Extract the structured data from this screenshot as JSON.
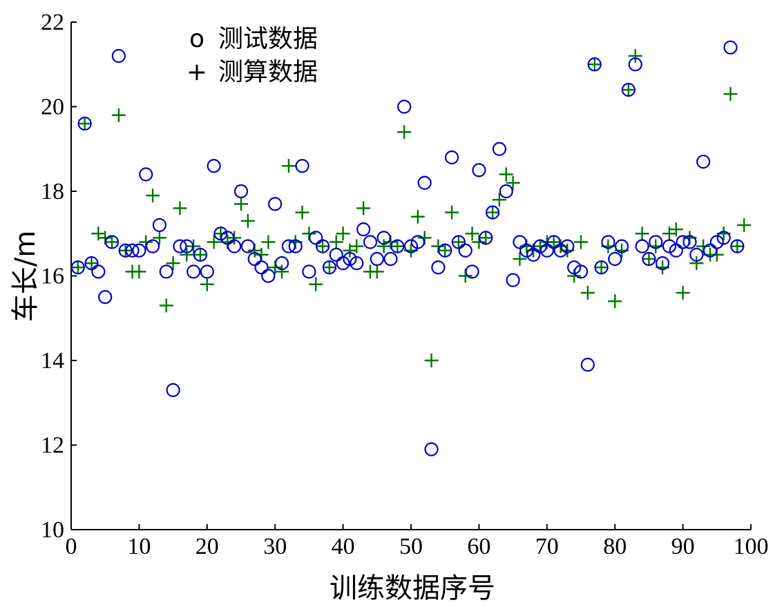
{
  "chart_data": {
    "type": "scatter",
    "xlabel": "训练数据序号",
    "ylabel": "车长/m",
    "xlim": [
      0,
      100
    ],
    "ylim": [
      10,
      22
    ],
    "xticks": [
      0,
      10,
      20,
      30,
      40,
      50,
      60,
      70,
      80,
      90,
      100
    ],
    "yticks": [
      10,
      12,
      14,
      16,
      18,
      20,
      22
    ],
    "grid": false,
    "legend_position": "top-left",
    "series": [
      {
        "name": "测试数据",
        "legend_marker": "o",
        "marker": "circle",
        "color": "#0000cc",
        "points": [
          [
            1,
            16.2
          ],
          [
            2,
            19.6
          ],
          [
            3,
            16.3
          ],
          [
            4,
            16.1
          ],
          [
            5,
            15.5
          ],
          [
            6,
            16.8
          ],
          [
            7,
            21.2
          ],
          [
            8,
            16.6
          ],
          [
            9,
            16.6
          ],
          [
            10,
            16.6
          ],
          [
            11,
            18.4
          ],
          [
            12,
            16.7
          ],
          [
            13,
            17.2
          ],
          [
            14,
            16.1
          ],
          [
            15,
            13.3
          ],
          [
            16,
            16.7
          ],
          [
            17,
            16.7
          ],
          [
            18,
            16.1
          ],
          [
            19,
            16.5
          ],
          [
            20,
            16.1
          ],
          [
            21,
            18.6
          ],
          [
            22,
            17.0
          ],
          [
            23,
            16.9
          ],
          [
            24,
            16.7
          ],
          [
            25,
            18.0
          ],
          [
            26,
            16.7
          ],
          [
            27,
            16.4
          ],
          [
            28,
            16.2
          ],
          [
            29,
            16.0
          ],
          [
            30,
            17.7
          ],
          [
            31,
            16.3
          ],
          [
            32,
            16.7
          ],
          [
            33,
            16.7
          ],
          [
            34,
            18.6
          ],
          [
            35,
            16.1
          ],
          [
            36,
            16.9
          ],
          [
            37,
            16.7
          ],
          [
            38,
            16.2
          ],
          [
            39,
            16.5
          ],
          [
            40,
            16.3
          ],
          [
            41,
            16.4
          ],
          [
            42,
            16.3
          ],
          [
            43,
            17.1
          ],
          [
            44,
            16.8
          ],
          [
            45,
            16.4
          ],
          [
            46,
            16.9
          ],
          [
            47,
            16.4
          ],
          [
            48,
            16.7
          ],
          [
            49,
            20.0
          ],
          [
            50,
            16.7
          ],
          [
            51,
            16.8
          ],
          [
            52,
            18.2
          ],
          [
            53,
            11.9
          ],
          [
            54,
            16.2
          ],
          [
            55,
            16.6
          ],
          [
            56,
            18.8
          ],
          [
            57,
            16.8
          ],
          [
            58,
            16.6
          ],
          [
            59,
            16.1
          ],
          [
            60,
            18.5
          ],
          [
            61,
            16.9
          ],
          [
            62,
            17.5
          ],
          [
            63,
            19.0
          ],
          [
            64,
            18.0
          ],
          [
            65,
            15.9
          ],
          [
            66,
            16.8
          ],
          [
            67,
            16.6
          ],
          [
            68,
            16.5
          ],
          [
            69,
            16.7
          ],
          [
            70,
            16.6
          ],
          [
            71,
            16.8
          ],
          [
            72,
            16.6
          ],
          [
            73,
            16.7
          ],
          [
            74,
            16.2
          ],
          [
            75,
            16.1
          ],
          [
            76,
            13.9
          ],
          [
            77,
            21.0
          ],
          [
            78,
            16.2
          ],
          [
            79,
            16.8
          ],
          [
            80,
            16.4
          ],
          [
            81,
            16.7
          ],
          [
            82,
            20.4
          ],
          [
            83,
            21.0
          ],
          [
            84,
            16.7
          ],
          [
            85,
            16.4
          ],
          [
            86,
            16.8
          ],
          [
            87,
            16.3
          ],
          [
            88,
            16.7
          ],
          [
            89,
            16.6
          ],
          [
            90,
            16.8
          ],
          [
            91,
            16.8
          ],
          [
            92,
            16.5
          ],
          [
            93,
            18.7
          ],
          [
            94,
            16.6
          ],
          [
            95,
            16.8
          ],
          [
            96,
            16.9
          ],
          [
            97,
            21.4
          ],
          [
            98,
            16.7
          ]
        ]
      },
      {
        "name": "测算数据",
        "legend_marker": "+",
        "marker": "plus",
        "color": "#007700",
        "points": [
          [
            1,
            16.2
          ],
          [
            2,
            19.6
          ],
          [
            3,
            16.3
          ],
          [
            4,
            17.0
          ],
          [
            5,
            16.9
          ],
          [
            6,
            16.8
          ],
          [
            7,
            19.8
          ],
          [
            8,
            16.6
          ],
          [
            9,
            16.1
          ],
          [
            10,
            16.1
          ],
          [
            11,
            16.8
          ],
          [
            12,
            17.9
          ],
          [
            13,
            16.9
          ],
          [
            14,
            15.3
          ],
          [
            15,
            16.3
          ],
          [
            16,
            17.6
          ],
          [
            17,
            16.5
          ],
          [
            18,
            16.7
          ],
          [
            19,
            16.5
          ],
          [
            20,
            15.8
          ],
          [
            21,
            16.8
          ],
          [
            22,
            17.0
          ],
          [
            23,
            16.8
          ],
          [
            24,
            16.9
          ],
          [
            25,
            17.7
          ],
          [
            26,
            17.3
          ],
          [
            27,
            16.6
          ],
          [
            28,
            16.5
          ],
          [
            29,
            16.8
          ],
          [
            30,
            16.2
          ],
          [
            31,
            16.1
          ],
          [
            32,
            18.6
          ],
          [
            33,
            16.8
          ],
          [
            34,
            17.5
          ],
          [
            35,
            17.0
          ],
          [
            36,
            15.8
          ],
          [
            37,
            16.7
          ],
          [
            38,
            16.2
          ],
          [
            39,
            16.8
          ],
          [
            40,
            17.0
          ],
          [
            41,
            16.6
          ],
          [
            42,
            16.7
          ],
          [
            43,
            17.6
          ],
          [
            44,
            16.1
          ],
          [
            45,
            16.1
          ],
          [
            46,
            16.7
          ],
          [
            47,
            16.8
          ],
          [
            48,
            16.7
          ],
          [
            49,
            19.4
          ],
          [
            50,
            16.6
          ],
          [
            51,
            17.4
          ],
          [
            52,
            16.9
          ],
          [
            53,
            14.0
          ],
          [
            54,
            16.7
          ],
          [
            55,
            16.6
          ],
          [
            56,
            17.5
          ],
          [
            57,
            16.8
          ],
          [
            58,
            16.0
          ],
          [
            59,
            17.0
          ],
          [
            60,
            16.8
          ],
          [
            61,
            16.9
          ],
          [
            62,
            17.5
          ],
          [
            63,
            17.8
          ],
          [
            64,
            18.4
          ],
          [
            65,
            18.2
          ],
          [
            66,
            16.4
          ],
          [
            67,
            16.7
          ],
          [
            68,
            16.6
          ],
          [
            69,
            16.7
          ],
          [
            70,
            16.8
          ],
          [
            71,
            16.8
          ],
          [
            72,
            16.7
          ],
          [
            73,
            16.6
          ],
          [
            74,
            16.0
          ],
          [
            75,
            16.8
          ],
          [
            76,
            15.6
          ],
          [
            77,
            21.0
          ],
          [
            78,
            16.2
          ],
          [
            79,
            16.7
          ],
          [
            80,
            15.4
          ],
          [
            81,
            16.6
          ],
          [
            82,
            20.4
          ],
          [
            83,
            21.2
          ],
          [
            84,
            17.0
          ],
          [
            85,
            16.4
          ],
          [
            86,
            16.7
          ],
          [
            87,
            16.2
          ],
          [
            88,
            17.0
          ],
          [
            89,
            17.1
          ],
          [
            90,
            15.6
          ],
          [
            91,
            16.9
          ],
          [
            92,
            16.3
          ],
          [
            93,
            16.7
          ],
          [
            94,
            16.5
          ],
          [
            95,
            16.5
          ],
          [
            96,
            17.0
          ],
          [
            97,
            20.3
          ],
          [
            98,
            16.7
          ],
          [
            99,
            17.2
          ]
        ]
      }
    ]
  }
}
